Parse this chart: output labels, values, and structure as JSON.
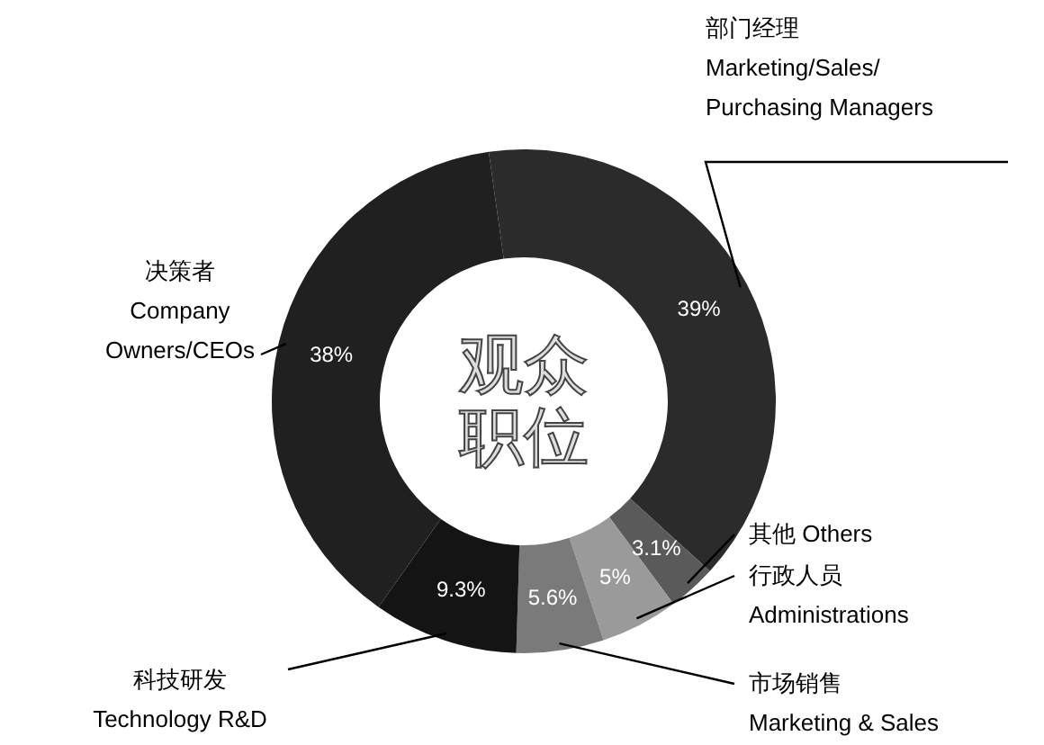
{
  "chart_data": {
    "type": "donut",
    "title": "观众职位",
    "categories": [
      "部门经理\nMarketing/Sales/\nPurchasing Managers",
      "其他 Others",
      "行政人员\nAdministrations",
      "市场销售\nMarketing & Sales",
      "科技研发\nTechnology R&D",
      "决策者\nCompany\nOwners/CEOs"
    ],
    "values": [
      39,
      3.1,
      5,
      5.6,
      9.3,
      38
    ],
    "colors": [
      "#2b2b2b",
      "#5a5a5a",
      "#9a9a9a",
      "#7a7a7a",
      "#141414",
      "#202020"
    ],
    "value_labels": [
      "39%",
      "3.1%",
      "5%",
      "5.6%",
      "9.3%",
      "38%"
    ]
  }
}
